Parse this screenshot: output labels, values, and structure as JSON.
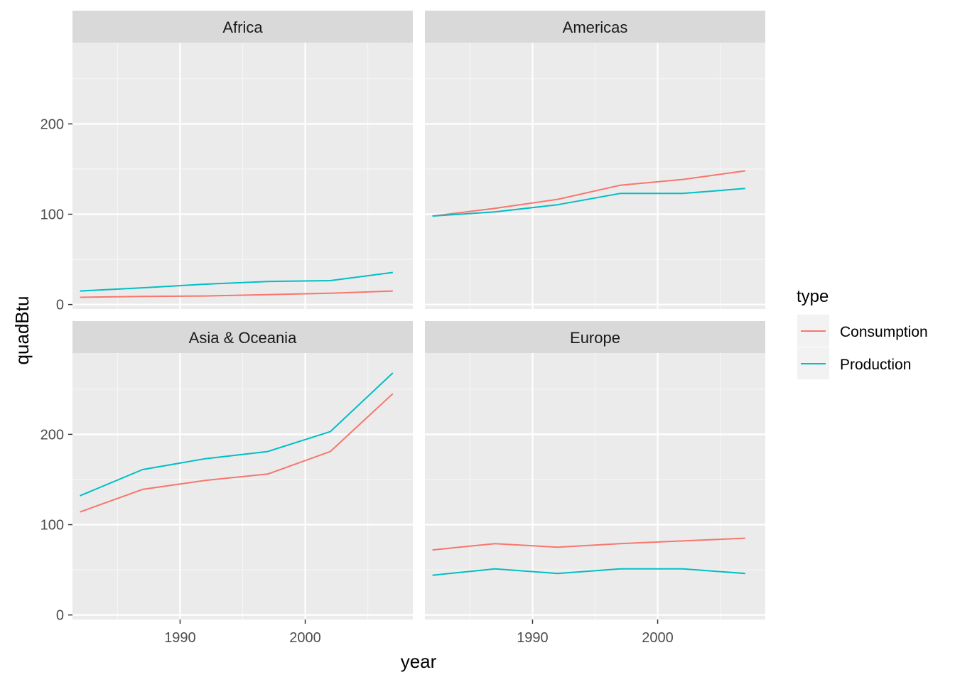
{
  "chart_data": {
    "type": "line",
    "facet_by": "region",
    "xlabel": "year",
    "ylabel": "quadBtu",
    "xlim": [
      1981.4,
      2008.6
    ],
    "ylim": [
      -5,
      290
    ],
    "x_ticks": [
      1990,
      2000
    ],
    "y_ticks": [
      0,
      100,
      200
    ],
    "grid": true,
    "legend": {
      "title": "type",
      "placement": "right",
      "entries": [
        {
          "name": "Consumption",
          "color": "#F8766D"
        },
        {
          "name": "Production",
          "color": "#00BFC4"
        }
      ]
    },
    "panels": [
      {
        "title": "Africa",
        "x": [
          1982,
          1987,
          1992,
          1997,
          2002,
          2007
        ],
        "series": [
          {
            "name": "Consumption",
            "color": "#F8766D",
            "values": [
              8,
              9,
              9.5,
              11,
              12.5,
              15
            ]
          },
          {
            "name": "Production",
            "color": "#00BFC4",
            "values": [
              15,
              18.5,
              22.5,
              25.5,
              26.5,
              35.5
            ]
          }
        ]
      },
      {
        "title": "Americas",
        "x": [
          1982,
          1987,
          1992,
          1997,
          2002,
          2007
        ],
        "series": [
          {
            "name": "Consumption",
            "color": "#F8766D",
            "values": [
              98,
              106.5,
              116.5,
              132,
              138.5,
              148
            ]
          },
          {
            "name": "Production",
            "color": "#00BFC4",
            "values": [
              98,
              102.5,
              110.5,
              123,
              123,
              128.5
            ]
          }
        ]
      },
      {
        "title": "Asia & Oceania",
        "x": [
          1982,
          1987,
          1992,
          1997,
          2002,
          2007
        ],
        "series": [
          {
            "name": "Consumption",
            "color": "#F8766D",
            "values": [
              114,
              139,
              149,
              156,
              181,
              245
            ]
          },
          {
            "name": "Production",
            "color": "#00BFC4",
            "values": [
              132,
              161,
              173,
              181,
              203,
              268
            ]
          }
        ]
      },
      {
        "title": "Europe",
        "x": [
          1982,
          1987,
          1992,
          1997,
          2002,
          2007
        ],
        "series": [
          {
            "name": "Consumption",
            "color": "#F8766D",
            "values": [
              72,
              79,
              75,
              79,
              82,
              85
            ]
          },
          {
            "name": "Production",
            "color": "#00BFC4",
            "values": [
              44,
              51,
              46,
              51,
              51,
              46
            ]
          }
        ]
      }
    ]
  }
}
